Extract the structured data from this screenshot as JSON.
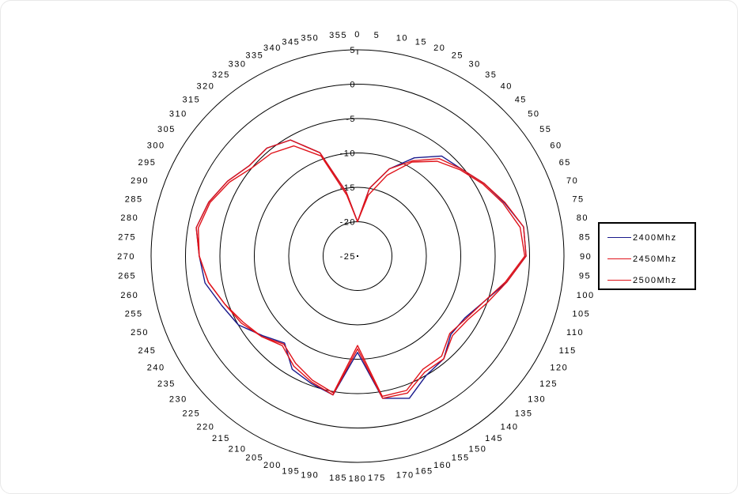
{
  "chart_data": {
    "type": "polar-line",
    "r_axis": {
      "min": -25,
      "max": 5,
      "ticks": [
        "-25",
        "-20",
        "-15",
        "-10",
        "-5",
        "0",
        "5"
      ]
    },
    "angle_ticks": [
      "0",
      "5",
      "10",
      "15",
      "20",
      "25",
      "30",
      "35",
      "40",
      "45",
      "50",
      "55",
      "60",
      "65",
      "70",
      "75",
      "80",
      "85",
      "90",
      "95",
      "100",
      "105",
      "110",
      "115",
      "120",
      "125",
      "130",
      "135",
      "140",
      "145",
      "150",
      "155",
      "160",
      "165",
      "170",
      "175",
      "180",
      "185",
      "190",
      "195",
      "200",
      "205",
      "210",
      "215",
      "220",
      "225",
      "230",
      "235",
      "240",
      "245",
      "250",
      "255",
      "260",
      "265",
      "270",
      "275",
      "280",
      "285",
      "290",
      "295",
      "300",
      "305",
      "310",
      "315",
      "320",
      "325",
      "330",
      "335",
      "340",
      "345",
      "350",
      "355"
    ],
    "angles": [
      0,
      10,
      20,
      30,
      40,
      50,
      60,
      70,
      80,
      90,
      100,
      110,
      120,
      130,
      140,
      150,
      160,
      170,
      180,
      190,
      200,
      210,
      220,
      230,
      240,
      250,
      260,
      270,
      280,
      290,
      300,
      310,
      320,
      330,
      340,
      350
    ],
    "series": [
      {
        "name": "2400Mhz",
        "color": "#1a1a8c",
        "values": [
          -20,
          -15,
          -11.5,
          -8.5,
          -6,
          -5.3,
          -3.8,
          -2.3,
          -0.5,
          -0.5,
          -3,
          -5.5,
          -7,
          -7.3,
          -5.5,
          -5,
          -3,
          -4,
          -11,
          -4.5,
          -5.3,
          -6,
          -8.5,
          -7,
          -5,
          -4,
          -2.5,
          -2,
          -1.2,
          -2,
          -3.2,
          -4.5,
          -4.5,
          -5.5,
          -9,
          -15.5
        ]
      },
      {
        "name": "2450Mhz",
        "color": "#e0131a",
        "values": [
          -20,
          -15,
          -11.5,
          -9,
          -6.5,
          -5.3,
          -3.8,
          -2.2,
          -0.5,
          -0.5,
          -3,
          -5,
          -6.5,
          -7,
          -5.5,
          -5.5,
          -3.8,
          -4,
          -11.5,
          -4.5,
          -5.5,
          -6.5,
          -8,
          -6.8,
          -5.5,
          -4.5,
          -3,
          -2,
          -1.2,
          -2,
          -3.2,
          -4.5,
          -4.5,
          -5.5,
          -9,
          -15.5
        ]
      },
      {
        "name": "2500Mhz",
        "color": "#e0131a",
        "values": [
          -20,
          -16,
          -12.5,
          -9.2,
          -7,
          -5.5,
          -4,
          -2.5,
          -1,
          -0.7,
          -3.2,
          -5.5,
          -6.8,
          -7.5,
          -6,
          -6,
          -4.2,
          -4.3,
          -12,
          -4.8,
          -5.8,
          -7,
          -8.3,
          -6.8,
          -5.8,
          -4.5,
          -3,
          -2,
          -1.5,
          -2.2,
          -3.5,
          -5,
          -5.5,
          -6.5,
          -9.5,
          -16
        ]
      }
    ]
  }
}
